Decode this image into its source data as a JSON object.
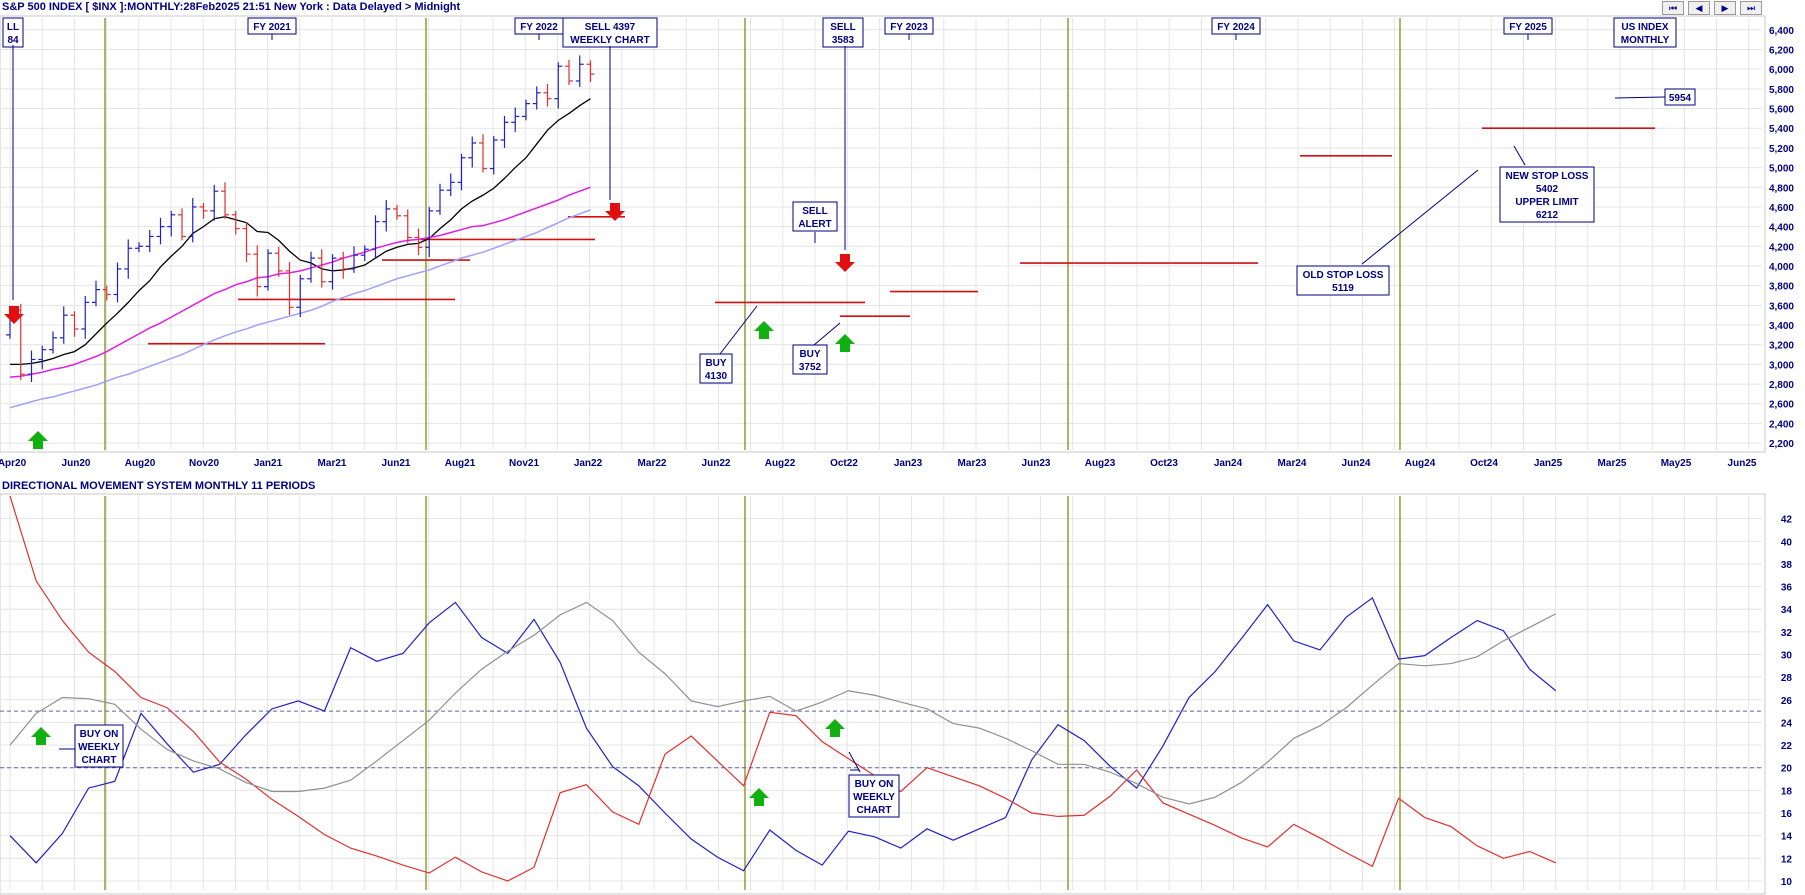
{
  "header": {
    "title": "S&P 500 INDEX [ $INX ]:MONTHLY:28Feb2025 21:51 New York : Data Delayed > Midnight",
    "nav": [
      "⏮",
      "◀",
      "▶",
      "⏭"
    ]
  },
  "colors": {
    "blue_bar": "#2020c8",
    "red_bar": "#e03030",
    "ma_short": "#000000",
    "ma_mid": "#e020e0",
    "ma_long": "#a0a0ff",
    "stop": "#d01010",
    "fy_line": "#808000",
    "grid": "#e4e4e4",
    "label_text": "#000080",
    "arrow_up": "#10b010",
    "arrow_down": "#e01010"
  },
  "chart_data": [
    {
      "type": "bar",
      "title": "S&P 500 INDEX [ $INX ]:MONTHLY:28Feb2025 21:51 New York : Data Delayed > Midnight",
      "y_ticks": [
        2200,
        2400,
        2600,
        2800,
        3000,
        3200,
        3400,
        3600,
        3800,
        4000,
        4200,
        4400,
        4600,
        4800,
        5000,
        5200,
        5400,
        5600,
        5800,
        6000,
        6200,
        6400
      ],
      "y_tick_labels": [
        "2,200",
        "2,400",
        "2,600",
        "2,800",
        "3,000",
        "3,200",
        "3,400",
        "3,600",
        "3,800",
        "4,000",
        "4,200",
        "4,400",
        "4,600",
        "4,800",
        "5,000",
        "5,200",
        "5,400",
        "5,600",
        "5,800",
        "6,000",
        "6,200",
        "6,400"
      ],
      "ylim": [
        2130,
        6520
      ],
      "x_tick_labels": [
        "Apr20",
        "Jun20",
        "Aug20",
        "Nov20",
        "Jan21",
        "Mar21",
        "Jun21",
        "Aug21",
        "Nov21",
        "Jan22",
        "Mar22",
        "Jun22",
        "Aug22",
        "Oct22",
        "Jan23",
        "Mar23",
        "Jun23",
        "Aug23",
        "Oct23",
        "Jan24",
        "Mar24",
        "Jun24",
        "Aug24",
        "Oct24",
        "Jan25",
        "Mar25",
        "May25",
        "Jun25"
      ],
      "fy_markers": [
        "FY 2021",
        "FY 2022",
        "FY 2023",
        "FY 2024",
        "FY 2025"
      ],
      "close": [
        3550,
        2900,
        3050,
        3150,
        3270,
        3500,
        3360,
        3630,
        3760,
        3710,
        3970,
        4180,
        4200,
        4300,
        4400,
        4520,
        4300,
        4600,
        4560,
        4760,
        4520,
        4380,
        4120,
        3790,
        4130,
        3950,
        3580,
        3870,
        4080,
        3840,
        4080,
        3970,
        4110,
        4170,
        4450,
        4580,
        4510,
        4290,
        4190,
        4560,
        4770,
        4850,
        5100,
        5250,
        4990,
        5280,
        5460,
        5520,
        5650,
        5760,
        5700,
        6030,
        5880,
        6050,
        5950
      ],
      "series": [
        {
          "name": "",
          "values": [
            3000,
            3000,
            3010,
            3030,
            3060,
            3100,
            3130,
            3200,
            3310,
            3420,
            3520,
            3630,
            3750,
            3850,
            3990,
            4100,
            4200,
            4330,
            4400,
            4480,
            4500,
            4470,
            4440,
            4350,
            4340,
            4260,
            4150,
            4060,
            4030,
            3970,
            3950,
            3960,
            3980,
            4010,
            4080,
            4150,
            4190,
            4220,
            4230,
            4280,
            4380,
            4470,
            4580,
            4660,
            4720,
            4790,
            4890,
            5000,
            5100,
            5240,
            5380,
            5480,
            5550,
            5630,
            5700
          ]
        },
        {
          "name": "",
          "values": [
            2870,
            2880,
            2900,
            2920,
            2950,
            2970,
            3000,
            3040,
            3080,
            3130,
            3190,
            3250,
            3310,
            3370,
            3420,
            3480,
            3540,
            3600,
            3660,
            3720,
            3760,
            3810,
            3840,
            3880,
            3890,
            3920,
            3930,
            3950,
            3980,
            4010,
            4040,
            4080,
            4110,
            4140,
            4180,
            4210,
            4240,
            4260,
            4270,
            4290,
            4310,
            4340,
            4370,
            4400,
            4410,
            4440,
            4470,
            4510,
            4550,
            4590,
            4630,
            4670,
            4720,
            4760,
            4800
          ]
        },
        {
          "name": "",
          "values": [
            2560,
            2590,
            2620,
            2650,
            2670,
            2700,
            2730,
            2760,
            2790,
            2830,
            2870,
            2900,
            2940,
            2980,
            3020,
            3060,
            3100,
            3150,
            3200,
            3250,
            3290,
            3330,
            3360,
            3400,
            3430,
            3460,
            3490,
            3520,
            3550,
            3590,
            3640,
            3680,
            3720,
            3750,
            3790,
            3830,
            3870,
            3900,
            3930,
            3960,
            4000,
            4040,
            4080,
            4110,
            4140,
            4180,
            4220,
            4260,
            4300,
            4340,
            4390,
            4440,
            4490,
            4530,
            4570
          ]
        }
      ],
      "stop_levels": [
        3210,
        3660,
        4060,
        4270,
        4500,
        3630,
        3490,
        3740,
        4030,
        5120,
        5400
      ],
      "annotations": [
        {
          "lines": [
            "LL",
            "84"
          ]
        },
        {
          "lines": [
            "FY 2021"
          ]
        },
        {
          "lines": [
            "FY 2022"
          ]
        },
        {
          "lines": [
            "SELL 4397",
            "WEEKLY CHART"
          ]
        },
        {
          "lines": [
            "SELL",
            "3583"
          ]
        },
        {
          "lines": [
            "FY 2023"
          ]
        },
        {
          "lines": [
            "FY 2024"
          ]
        },
        {
          "lines": [
            "FY 2025"
          ]
        },
        {
          "lines": [
            "US INDEX",
            "MONTHLY"
          ]
        },
        {
          "lines": [
            "5954"
          ]
        },
        {
          "lines": [
            "SELL",
            "ALERT"
          ]
        },
        {
          "lines": [
            "BUY",
            "4130"
          ]
        },
        {
          "lines": [
            "BUY",
            "3752"
          ]
        },
        {
          "lines": [
            "OLD STOP LOSS",
            "5119"
          ]
        },
        {
          "lines": [
            "NEW STOP LOSS",
            "5402",
            "UPPER LIMIT",
            "6212"
          ]
        }
      ],
      "grid": true
    },
    {
      "type": "line",
      "title": "DIRECTIONAL MOVEMENT SYSTEM MONTHLY 11 PERIODS",
      "y_ticks": [
        10,
        12,
        14,
        16,
        18,
        20,
        22,
        24,
        26,
        28,
        30,
        32,
        34,
        36,
        38,
        40,
        42
      ],
      "ylim": [
        9.2,
        44
      ],
      "ref_lines": [
        20,
        25
      ],
      "series": [
        {
          "name": "",
          "values": [
            14,
            11.6,
            14.2,
            18.2,
            18.8,
            24.8,
            22.1,
            19.6,
            20.3,
            22.9,
            25.2,
            25.9,
            25,
            30.6,
            29.4,
            30.1,
            32.8,
            34.6,
            31.5,
            30.1,
            33.1,
            29.3,
            23.5,
            20.1,
            18.4,
            16,
            13.7,
            12.1,
            10.9,
            14.5,
            12.7,
            11.4,
            14.4,
            13.9,
            12.9,
            14.6,
            13.6,
            14.6,
            15.6,
            20.7,
            23.8,
            22.4,
            20.1,
            18.2,
            21.9,
            26.2,
            28.5,
            31.4,
            34.4,
            31.2,
            30.4,
            33.3,
            35,
            29.6,
            29.9,
            31.5,
            33,
            32.1,
            28.7,
            26.8
          ]
        },
        {
          "name": "",
          "values": [
            44,
            36.5,
            33,
            30.2,
            28.5,
            26.2,
            25.3,
            23.2,
            20.5,
            19,
            17.2,
            15.7,
            14.1,
            12.9,
            12.2,
            11.4,
            10.7,
            12.1,
            10.8,
            10,
            11.2,
            17.8,
            18.5,
            16.1,
            15,
            21.2,
            22.8,
            20.6,
            18.4,
            24.9,
            24.6,
            22.3,
            20.8,
            19.3,
            17.9,
            20,
            19.2,
            18.4,
            17.3,
            16,
            15.7,
            15.8,
            17.5,
            19.8,
            16.9,
            15.9,
            14.9,
            13.8,
            13,
            15,
            13.8,
            12.5,
            11.3,
            17.3,
            15.6,
            14.8,
            13.1,
            12,
            12.6,
            11.6
          ]
        },
        {
          "name": "",
          "values": [
            22,
            24.8,
            26.2,
            26.1,
            25.6,
            23.4,
            21.6,
            20.6,
            19.9,
            18.7,
            17.9,
            17.9,
            18.2,
            18.9,
            20.6,
            22.4,
            24.2,
            26.6,
            28.7,
            30.3,
            31.7,
            33.5,
            34.6,
            33,
            30.2,
            28.3,
            25.9,
            25.4,
            25.9,
            26.3,
            25,
            25.8,
            26.8,
            26.4,
            25.8,
            25.2,
            23.9,
            23.5,
            22.6,
            21.5,
            20.3,
            20.3,
            19.6,
            18.6,
            17.4,
            16.8,
            17.4,
            18.7,
            20.5,
            22.6,
            23.7,
            25.3,
            27.3,
            29.2,
            29,
            29.2,
            29.8,
            31.2,
            32.4,
            33.6
          ]
        }
      ],
      "annotations": [
        {
          "lines": [
            "BUY ON",
            "WEEKLY",
            "CHART"
          ]
        },
        {
          "lines": [
            "BUY ON",
            "WEEKLY",
            "CHART"
          ]
        }
      ],
      "grid": true
    }
  ]
}
